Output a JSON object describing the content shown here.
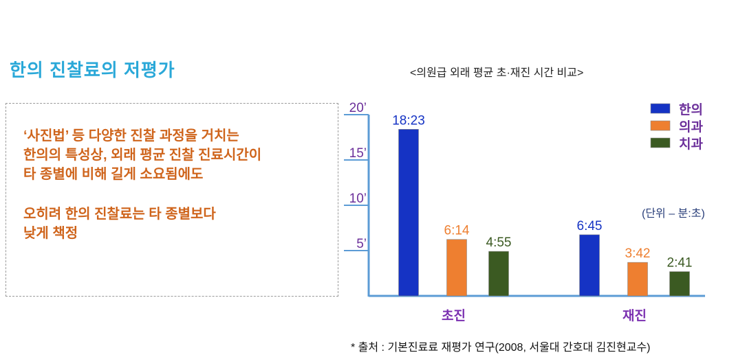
{
  "title": "한의 진찰료의 저평가",
  "description": {
    "lines_1": [
      "‘사진법’ 등 다양한 진찰 과정을 거치는",
      "한의의 특성상, 외래 평균 진찰 진료시간이",
      "타 종별에 비해 길게 소요됨에도"
    ],
    "lines_2": [
      "오히려 한의 진찰료는 타 종별보다",
      "낮게 책정"
    ]
  },
  "source": "* 출처 : 기본진료료 재평가 연구(2008, 서울대 간호대 김진현교수)",
  "chart_data": {
    "type": "bar",
    "title": "<의원급 외래 평균 초·재진 시간 비교>",
    "unit_note": "(단위 – 분:초)",
    "categories": [
      "초진",
      "재진"
    ],
    "ylim": [
      0,
      20
    ],
    "yticks": [
      "5’",
      "10’",
      "15’",
      "20’"
    ],
    "ytick_values": [
      5,
      10,
      15,
      20
    ],
    "legend_position": "top-right",
    "series": [
      {
        "name": "한의",
        "color": "#1533c4",
        "values": [
          "18:23",
          "6:45"
        ]
      },
      {
        "name": "의과",
        "color": "#ee7f30",
        "values": [
          "6:14",
          "3:42"
        ]
      },
      {
        "name": "치과",
        "color": "#3b5a22",
        "values": [
          "4:55",
          "2:41"
        ]
      }
    ],
    "axis_color": "#5b9bd5",
    "tick_label_color": "#6b2f9a"
  }
}
